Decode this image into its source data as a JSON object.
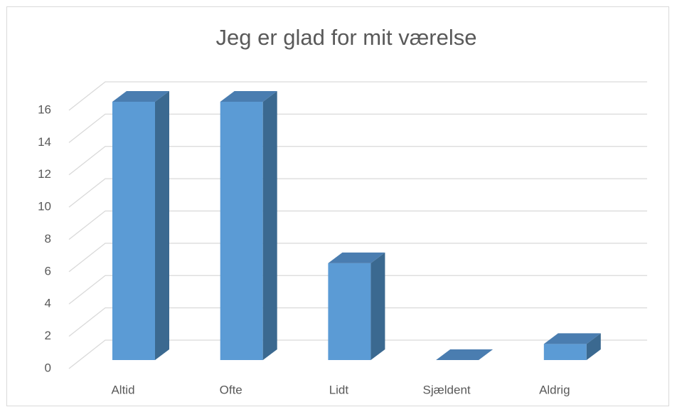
{
  "chart_data": {
    "type": "bar3d",
    "title": "Jeg er glad for mit værelse",
    "categories": [
      "Altid",
      "Ofte",
      "Lidt",
      "Sjældent",
      "Aldrig"
    ],
    "values": [
      16,
      16,
      6,
      0,
      1
    ],
    "color": "#5b9bd5",
    "ylim": [
      0,
      16
    ],
    "yticks": [
      0,
      2,
      4,
      6,
      8,
      10,
      12,
      14,
      16
    ],
    "grid": true
  }
}
